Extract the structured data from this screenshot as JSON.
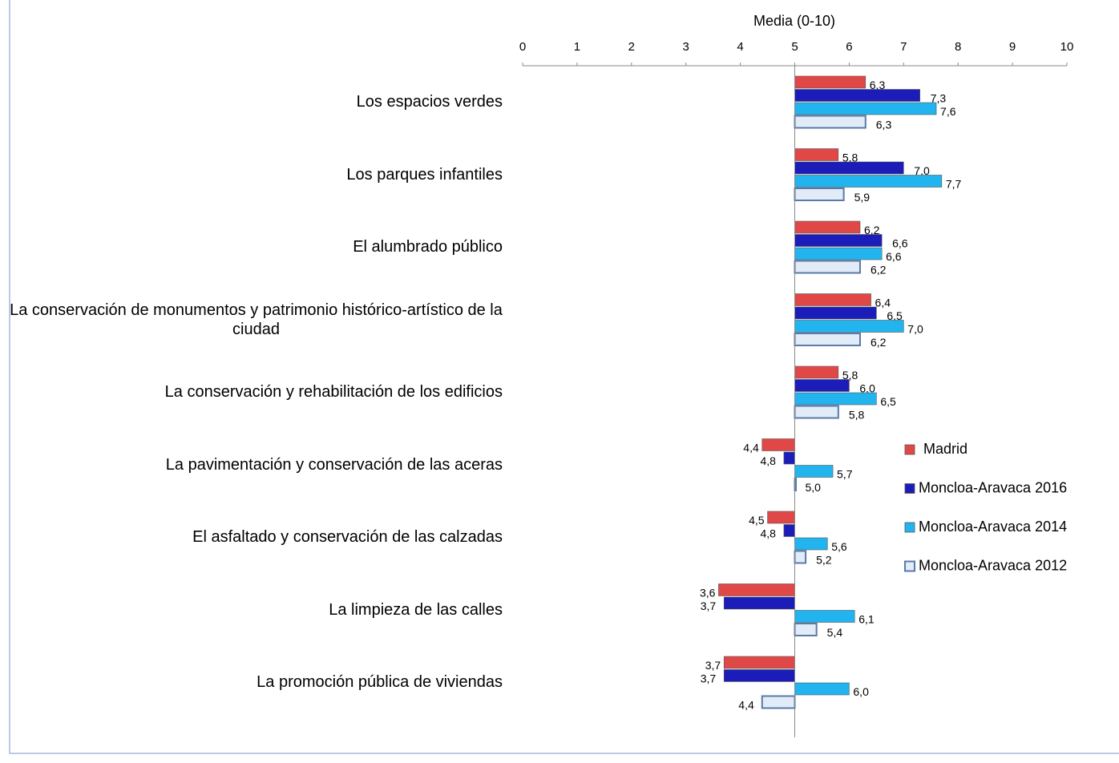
{
  "chart_data": {
    "type": "barh",
    "xlabel": "Media (0-10)",
    "xlim": [
      0,
      10
    ],
    "xticks": [
      0,
      1,
      2,
      3,
      4,
      5,
      6,
      7,
      8,
      9,
      10
    ],
    "axis_crosses": 5,
    "legend": "right",
    "categories": [
      "Los espacios verdes",
      "Los parques infantiles",
      "El alumbrado público",
      "La conservación de monumentos y patrimonio histórico-artístico de la ciudad",
      "La conservación y rehabilitación de los edificios",
      "La pavimentación y conservación de las aceras",
      "El asfaltado y conservación de las calzadas",
      "La limpieza de las calles",
      "La promoción pública de viviendas"
    ],
    "series": [
      {
        "name": "Madrid",
        "color": "#e04848",
        "values": [
          6.3,
          5.8,
          6.2,
          6.4,
          5.8,
          4.4,
          4.5,
          3.6,
          3.7
        ],
        "value_labels": [
          "6,3",
          "5,8",
          "6,2",
          "6,4",
          "5,8",
          "4,4",
          "4,5",
          "3,6",
          "3,7"
        ]
      },
      {
        "name": "Moncloa-Aravaca 2016",
        "color": "#1c1cb8",
        "values": [
          7.3,
          7.0,
          6.6,
          6.5,
          6.0,
          4.8,
          4.8,
          3.7,
          3.7
        ],
        "value_labels": [
          "7,3",
          "7,0",
          "6,6",
          "6,5",
          "6,0",
          "4,8",
          "4,8",
          "3,7",
          "3,7"
        ]
      },
      {
        "name": "Moncloa-Aravaca 2014",
        "color": "#22b4ee",
        "values": [
          7.6,
          7.7,
          6.6,
          7.0,
          6.5,
          5.7,
          5.6,
          6.1,
          6.0
        ],
        "value_labels": [
          "7,6",
          "7,7",
          "6,6",
          "7,0",
          "6,5",
          "5,7",
          "5,6",
          "6,1",
          "6,0"
        ]
      },
      {
        "name": "Moncloa-Aravaca 2012",
        "color": "#e2ecf8",
        "values": [
          6.3,
          5.9,
          6.2,
          6.2,
          5.8,
          5.0,
          5.2,
          5.4,
          4.4
        ],
        "value_labels": [
          "6,3",
          "5,9",
          "6,2",
          "6,2",
          "5,8",
          "5,0",
          "5,2",
          "5,4",
          "4,4"
        ]
      }
    ]
  }
}
